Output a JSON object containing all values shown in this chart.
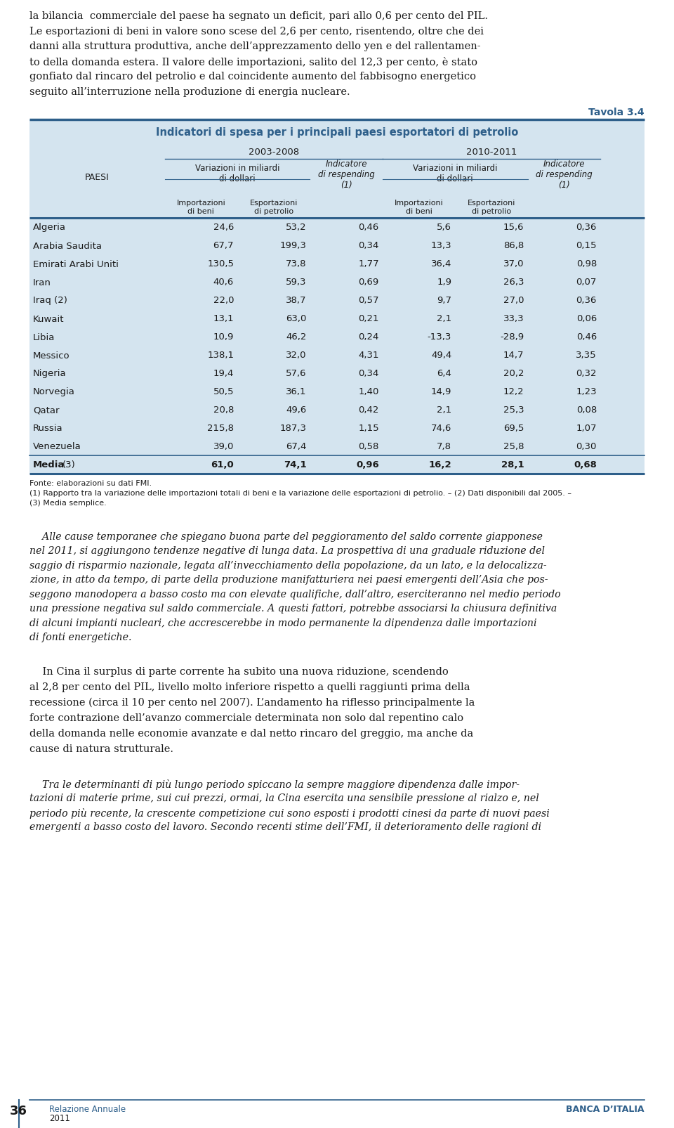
{
  "page_bg": "#ffffff",
  "top_text_lines": [
    "la bilancia  commerciale del paese ha segnato un deficit, pari allo 0,6 per cento del PIL.",
    "Le esportazioni di beni in valore sono scese del 2,6 per cento, risentendo, oltre che dei",
    "danni alla struttura produttiva, anche dell’apprezzamento dello yen e del rallentamen-",
    "to della domanda estera. Il valore delle importazioni, salito del 12,3 per cento, è stato",
    "gonfiato dal rincaro del petrolio e dal coincidente aumento del fabbisogno energetico",
    "seguito all’interruzione nella produzione di energia nucleare."
  ],
  "tavola_label": "Tavola 3.4",
  "table_title": "Indicatori di spesa per i principali paesi esportatori di petrolio",
  "col_period1": "2003-2008",
  "col_period2": "2010-2011",
  "col_var1": "Variazioni in miliardi\ndi dollari",
  "col_ind1": "Indicatore\ndi respending\n(1)",
  "col_var2": "Variazioni in miliardi\ndi dollari",
  "col_ind2": "Indicatore\ndi respending\n(1)",
  "col_paesi": "PAESI",
  "rows": [
    [
      "Algeria",
      "24,6",
      "53,2",
      "0,46",
      "5,6",
      "15,6",
      "0,36"
    ],
    [
      "Arabia Saudita",
      "67,7",
      "199,3",
      "0,34",
      "13,3",
      "86,8",
      "0,15"
    ],
    [
      "Emirati Arabi Uniti",
      "130,5",
      "73,8",
      "1,77",
      "36,4",
      "37,0",
      "0,98"
    ],
    [
      "Iran",
      "40,6",
      "59,3",
      "0,69",
      "1,9",
      "26,3",
      "0,07"
    ],
    [
      "Iraq (2)",
      "22,0",
      "38,7",
      "0,57",
      "9,7",
      "27,0",
      "0,36"
    ],
    [
      "Kuwait",
      "13,1",
      "63,0",
      "0,21",
      "2,1",
      "33,3",
      "0,06"
    ],
    [
      "Libia",
      "10,9",
      "46,2",
      "0,24",
      "-13,3",
      "-28,9",
      "0,46"
    ],
    [
      "Messico",
      "138,1",
      "32,0",
      "4,31",
      "49,4",
      "14,7",
      "3,35"
    ],
    [
      "Nigeria",
      "19,4",
      "57,6",
      "0,34",
      "6,4",
      "20,2",
      "0,32"
    ],
    [
      "Norvegia",
      "50,5",
      "36,1",
      "1,40",
      "14,9",
      "12,2",
      "1,23"
    ],
    [
      "Qatar",
      "20,8",
      "49,6",
      "0,42",
      "2,1",
      "25,3",
      "0,08"
    ],
    [
      "Russia",
      "215,8",
      "187,3",
      "1,15",
      "74,6",
      "69,5",
      "1,07"
    ],
    [
      "Venezuela",
      "39,0",
      "67,4",
      "0,58",
      "7,8",
      "25,8",
      "0,30"
    ]
  ],
  "media_row": [
    "Media",
    "(3)",
    "61,0",
    "74,1",
    "0,96",
    "16,2",
    "28,1",
    "0,68"
  ],
  "fonte_lines": [
    "Fonte: elaborazioni su dati FMI.",
    "(1) Rapporto tra la variazione delle importazioni totali di beni e la variazione delle esportazioni di petrolio. – (2) Dati disponibili dal 2005. –",
    "(3) Media semplice."
  ],
  "italic_text_lines": [
    "    Alle cause temporanee che spiegano buona parte del peggioramento del saldo corrente giapponese",
    "nel 2011, si aggiungono tendenze negative di lunga data. La prospettiva di una graduale riduzione del",
    "saggio di risparmio nazionale, legata all’invecchiamento della popolazione, da un lato, e la delocalizza-",
    "zione, in atto da tempo, di parte della produzione manifatturiera nei paesi emergenti dell’Asia che pos-",
    "seggono manodopera a basso costo ma con elevate qualifiche, dall’altro, eserciteranno nel medio periodo",
    "una pressione negativa sul saldo commerciale. A questi fattori, potrebbe associarsi la chiusura definitiva",
    "di alcuni impianti nucleari, che accrescerebbe in modo permanente la dipendenza dalle importazioni",
    "di fonti energetiche."
  ],
  "normal_text1_lines": [
    "    In Cina il surplus di parte corrente ha subito una nuova riduzione, scendendo",
    "al 2,8 per cento del PIL, livello molto inferiore rispetto a quelli raggiunti prima della",
    "recessione (circa il 10 per cento nel 2007). L’andamento ha riflesso principalmente la",
    "forte contrazione dell’avanzo commerciale determinata non solo dal repentino calo",
    "della domanda nelle economie avanzate e dal netto rincaro del greggio, ma anche da",
    "cause di natura strutturale."
  ],
  "italic_text2_lines": [
    "    Tra le determinanti di più lungo periodo spiccano la sempre maggiore dipendenza dalle impor-",
    "tazioni di materie prime, sui cui prezzi, ormai, la Cina esercita una sensibile pressione al rialzo e, nel",
    "periodo più recente, la crescente competizione cui sono esposti i prodotti cinesi da parte di nuovi paesi",
    "emergenti a basso costo del lavoro. Secondo recenti stime dell’FMI, il deterioramento delle ragioni di"
  ],
  "footer_relazione": "Relazione Annuale",
  "footer_year": "2011",
  "footer_banca": "BANCA D’ITALIA",
  "footer_page": "36",
  "blue": "#2e5f8a",
  "table_bg": "#d4e4ef",
  "table_border": "#2e5f8a",
  "text_dark": "#1a1a1a",
  "white": "#ffffff"
}
